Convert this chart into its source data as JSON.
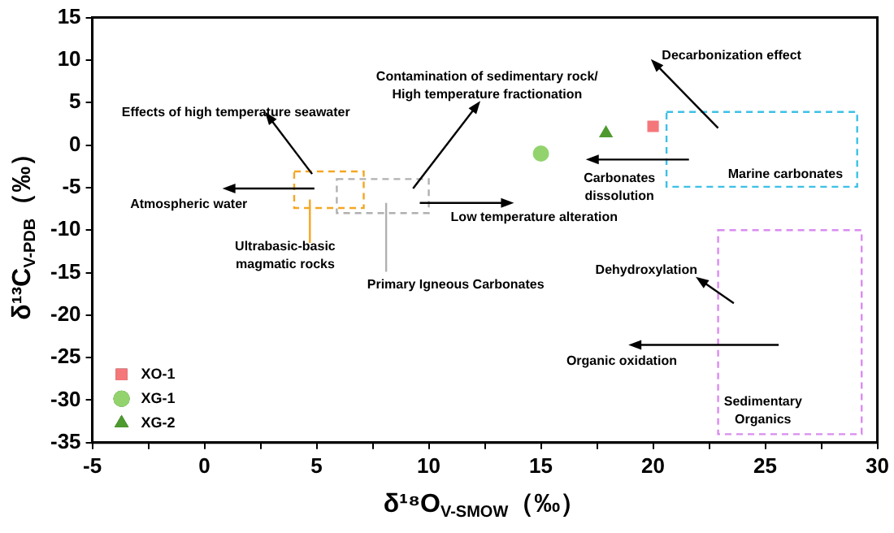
{
  "chart_data": {
    "type": "scatter",
    "xlabel": "δ¹⁸O$_{V-SMOW}$（‰）",
    "ylabel": "δ¹³C$_{V-PDB}$（‰）",
    "series": [
      {
        "name": "XO-1",
        "color": "#f4777a",
        "marker": "square",
        "x": [
          20
        ],
        "values": [
          2.2
        ]
      },
      {
        "name": "XG-1",
        "color": "#92d36e",
        "marker": "circle",
        "x": [
          15
        ],
        "values": [
          -1
        ]
      },
      {
        "name": "XG-2",
        "color": "#4e9a2e",
        "marker": "triangle",
        "x": [
          17.9
        ],
        "values": [
          1.4
        ]
      }
    ],
    "xlim": [
      -5,
      30
    ],
    "xticks": [
      -5,
      {
        "value": -2.5,
        "label": null
      },
      0,
      {
        "value": 2.5,
        "label": null
      },
      5,
      {
        "value": 7.5,
        "label": null
      },
      10,
      {
        "value": 12.5,
        "label": null
      },
      15,
      {
        "value": 17.5,
        "label": null
      },
      20,
      {
        "value": 22.5,
        "label": null
      },
      25,
      {
        "value": 27.5,
        "label": null
      },
      30
    ],
    "ylim": [
      -35,
      15
    ],
    "yticks": [
      -35,
      -30,
      -25,
      -20,
      -15,
      -10,
      -5,
      0,
      5,
      10,
      15
    ],
    "grid": false,
    "legend": "bottom left",
    "annotations": [
      "Effects of high temperature seawater",
      "Atmospheric water",
      "Ultrabasic-basic\nmagmatic rocks",
      "Primary Igneous Carbonates",
      "Contamination of sedimentary rock/\nHigh temperature fractionation",
      "Low temperature alteration",
      "Decarbonization effect",
      "Carbonates\ndissolution",
      "Marine carbonates",
      "Dehydroxylation",
      "Organic oxidation",
      "Sedimentary\nOrganics"
    ]
  }
}
